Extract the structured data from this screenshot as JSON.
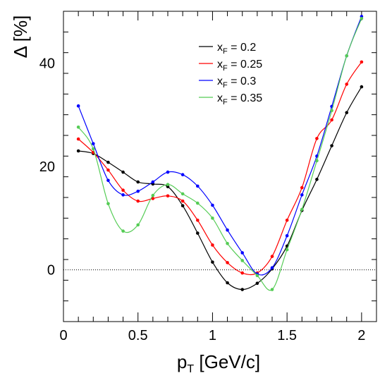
{
  "chart_data": {
    "type": "line",
    "xlabel": {
      "main": "p",
      "sub": "T",
      "rest": " [GeV/c]"
    },
    "ylabel": "Δ [%]",
    "xlim": [
      0,
      2.1
    ],
    "ylim": [
      -10,
      50
    ],
    "xticks": [
      0,
      0.5,
      1,
      1.5,
      2
    ],
    "xtick_labels": [
      "0",
      "0.5",
      "1",
      "1.5",
      "2"
    ],
    "yticks": [
      0,
      20,
      40
    ],
    "ytick_labels": [
      "0",
      "20",
      "40"
    ],
    "reference_line": {
      "y": 0,
      "style": "dotted"
    },
    "legend": {
      "placement": "top-center"
    },
    "series": [
      {
        "name": "0.2",
        "label_main": "x",
        "label_sub": "F",
        "label_rest": " = 0.2",
        "color": "#000000",
        "x": [
          0.1,
          0.2,
          0.3,
          0.4,
          0.5,
          0.6,
          0.7,
          0.8,
          0.9,
          1.0,
          1.1,
          1.2,
          1.3,
          1.4,
          1.5,
          1.6,
          1.7,
          1.8,
          1.9,
          2.0
        ],
        "y": [
          23.0,
          22.5,
          20.8,
          18.9,
          17.0,
          16.6,
          16.1,
          12.4,
          7.1,
          1.5,
          -2.5,
          -3.8,
          -2.6,
          0.2,
          4.6,
          11.5,
          17.5,
          24.0,
          30.4,
          35.4
        ]
      },
      {
        "name": "0.25",
        "label_main": "x",
        "label_sub": "F",
        "label_rest": " = 0.25",
        "color": "#ff0000",
        "x": [
          0.1,
          0.2,
          0.3,
          0.4,
          0.5,
          0.6,
          0.7,
          0.8,
          0.9,
          1.0,
          1.1,
          1.2,
          1.3,
          1.4,
          1.5,
          1.6,
          1.7,
          1.8,
          1.9,
          2.0
        ],
        "y": [
          25.3,
          22.7,
          19.3,
          15.4,
          13.3,
          13.8,
          14.3,
          13.3,
          9.6,
          4.8,
          1.4,
          -0.6,
          -0.6,
          2.6,
          9.6,
          15.9,
          25.4,
          29.0,
          35.9,
          40.2
        ]
      },
      {
        "name": "0.3",
        "label_main": "x",
        "label_sub": "F",
        "label_rest": " = 0.3",
        "color": "#0000ff",
        "x": [
          0.1,
          0.2,
          0.3,
          0.4,
          0.5,
          0.6,
          0.7,
          0.8,
          0.9,
          1.0,
          1.1,
          1.2,
          1.3,
          1.4,
          1.5,
          1.6,
          1.7,
          1.8,
          1.9,
          2.0
        ],
        "y": [
          31.7,
          24.4,
          17.3,
          14.5,
          15.2,
          17.0,
          18.9,
          18.4,
          16.2,
          12.5,
          7.7,
          3.3,
          -0.8,
          0.4,
          6.6,
          14.5,
          22.0,
          31.6,
          41.4,
          49.0
        ]
      },
      {
        "name": "0.35",
        "label_main": "x",
        "label_sub": "F",
        "label_rest": " = 0.35",
        "color": "#55cc55",
        "x": [
          0.1,
          0.2,
          0.3,
          0.4,
          0.5,
          0.6,
          0.7,
          0.8,
          0.9,
          1.0,
          1.1,
          1.2,
          1.3,
          1.4,
          1.5,
          1.6,
          1.7,
          1.8,
          1.9,
          2.0
        ],
        "y": [
          27.6,
          23.4,
          12.8,
          7.5,
          8.7,
          14.4,
          16.5,
          14.7,
          12.9,
          10.0,
          5.1,
          1.8,
          -1.1,
          -3.8,
          3.9,
          11.7,
          21.1,
          30.8,
          41.4,
          48.6
        ]
      }
    ]
  }
}
